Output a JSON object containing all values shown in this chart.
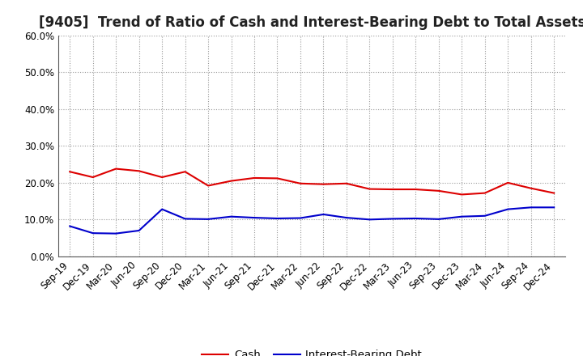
{
  "title": "[9405]  Trend of Ratio of Cash and Interest-Bearing Debt to Total Assets",
  "x_labels": [
    "Sep-19",
    "Dec-19",
    "Mar-20",
    "Jun-20",
    "Sep-20",
    "Dec-20",
    "Mar-21",
    "Jun-21",
    "Sep-21",
    "Dec-21",
    "Mar-22",
    "Jun-22",
    "Sep-22",
    "Dec-22",
    "Mar-23",
    "Jun-23",
    "Sep-23",
    "Dec-23",
    "Mar-24",
    "Jun-24",
    "Sep-24",
    "Dec-24"
  ],
  "cash": [
    0.23,
    0.215,
    0.238,
    0.232,
    0.215,
    0.23,
    0.192,
    0.205,
    0.213,
    0.212,
    0.198,
    0.196,
    0.198,
    0.183,
    0.182,
    0.182,
    0.178,
    0.168,
    0.172,
    0.2,
    0.185,
    0.172
  ],
  "ibd": [
    0.082,
    0.063,
    0.062,
    0.07,
    0.128,
    0.102,
    0.101,
    0.108,
    0.105,
    0.103,
    0.104,
    0.114,
    0.105,
    0.1,
    0.102,
    0.103,
    0.101,
    0.108,
    0.11,
    0.128,
    0.133,
    0.133
  ],
  "cash_color": "#dd0000",
  "ibd_color": "#0000cc",
  "background_color": "#ffffff",
  "plot_bg_color": "#ffffff",
  "grid_color": "#999999",
  "ylim": [
    0.0,
    0.6
  ],
  "yticks": [
    0.0,
    0.1,
    0.2,
    0.3,
    0.4,
    0.5,
    0.6
  ],
  "legend_cash": "Cash",
  "legend_ibd": "Interest-Bearing Debt",
  "title_fontsize": 12,
  "axis_fontsize": 8.5,
  "legend_fontsize": 9.5,
  "linewidth": 1.5
}
